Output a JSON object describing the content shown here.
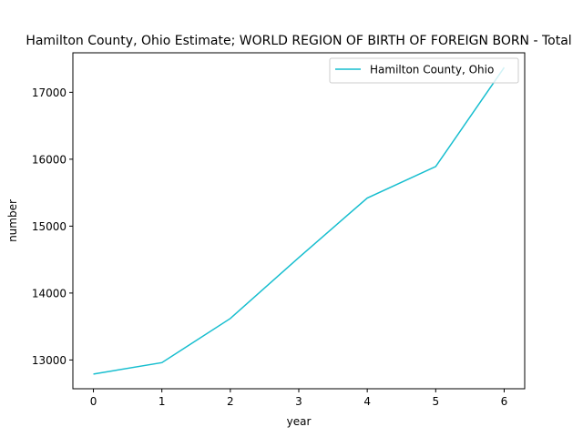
{
  "chart_data": {
    "type": "line",
    "title": "Hamilton County, Ohio Estimate; WORLD REGION OF BIRTH OF FOREIGN BORN - Total",
    "xlabel": "year",
    "ylabel": "number",
    "x": [
      0,
      1,
      2,
      3,
      4,
      5,
      6
    ],
    "xticks": [
      "0",
      "1",
      "2",
      "3",
      "4",
      "5",
      "6"
    ],
    "yticks": [
      "13000",
      "14000",
      "15000",
      "16000",
      "17000"
    ],
    "xlim": [
      -0.3,
      6.3
    ],
    "ylim": [
      12570,
      17590
    ],
    "series": [
      {
        "name": "Hamilton County, Ohio",
        "color": "#17becf",
        "values": [
          12790,
          12960,
          13620,
          14530,
          15420,
          15890,
          17370
        ]
      }
    ],
    "legend_position": "top-right",
    "grid": false
  }
}
